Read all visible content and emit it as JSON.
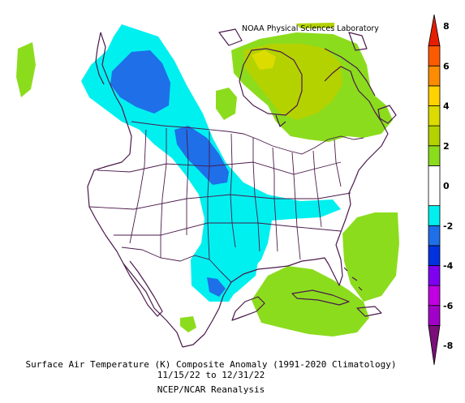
{
  "header": {
    "credit": "NOAA Physical Sciences Laboratory"
  },
  "caption": {
    "line1": "Surface Air Temperature (K) Composite Anomaly (1991-2020 Climatology)",
    "line2": "11/15/22  to 12/31/22",
    "line3": "NCEP/NCAR Reanalysis"
  },
  "colorbar": {
    "units": "K",
    "range": [
      -8,
      8
    ],
    "tick_labels": [
      "8",
      "6",
      "4",
      "2",
      "0",
      "-2",
      "-4",
      "-6",
      "-8"
    ],
    "bins": [
      {
        "from": -8,
        "to": -7,
        "color": "#7a0f7a"
      },
      {
        "from": -7,
        "to": -6,
        "color": "#a000c8"
      },
      {
        "from": -6,
        "to": -5,
        "color": "#c000e0"
      },
      {
        "from": -5,
        "to": -4,
        "color": "#7d00f0"
      },
      {
        "from": -4,
        "to": -3,
        "color": "#0032e0"
      },
      {
        "from": -3,
        "to": -2,
        "color": "#1f6fe8"
      },
      {
        "from": -2,
        "to": -1,
        "color": "#00f0f0"
      },
      {
        "from": -1,
        "to": 1,
        "color": "#ffffff"
      },
      {
        "from": 1,
        "to": 2,
        "color": "#8cdc1e"
      },
      {
        "from": 2,
        "to": 3,
        "color": "#b4d200"
      },
      {
        "from": 3,
        "to": 4,
        "color": "#dcdc00"
      },
      {
        "from": 4,
        "to": 5,
        "color": "#ffd200"
      },
      {
        "from": 5,
        "to": 6,
        "color": "#ff8c00"
      },
      {
        "from": 6,
        "to": 7,
        "color": "#ff5a00"
      },
      {
        "from": 7,
        "to": 8,
        "color": "#e61e00"
      }
    ]
  }
}
